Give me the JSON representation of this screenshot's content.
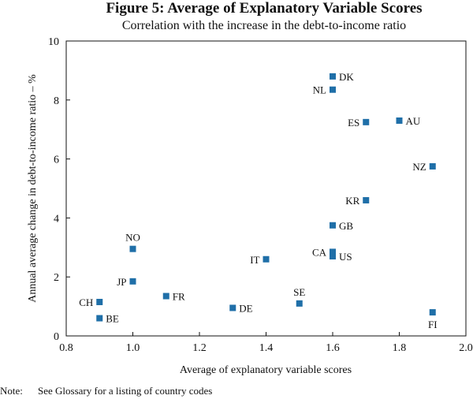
{
  "chart_data": {
    "type": "scatter",
    "title": "Figure 5: Average of Explanatory Variable Scores",
    "subtitle": "Correlation with the increase in the debt-to-income ratio",
    "xlabel": "Average of explanatory variable scores",
    "ylabel": "Annual average change in debt-to-income ratio – %",
    "xlim": [
      0.8,
      2.0
    ],
    "ylim": [
      0,
      10
    ],
    "x_ticks": [
      0.8,
      1.0,
      1.2,
      1.4,
      1.6,
      1.8,
      2.0
    ],
    "x_tick_labels": [
      "0.8",
      "1.0",
      "1.2",
      "1.4",
      "1.6",
      "1.8",
      "2.0"
    ],
    "y_ticks": [
      0,
      2,
      4,
      6,
      8,
      10
    ],
    "y_tick_labels": [
      "0",
      "2",
      "4",
      "6",
      "8",
      "10"
    ],
    "grid": false,
    "marker_color": "#1f6fa8",
    "points": [
      {
        "label": "DK",
        "x": 1.6,
        "y": 8.8,
        "pos": "right"
      },
      {
        "label": "NL",
        "x": 1.6,
        "y": 8.35,
        "pos": "left"
      },
      {
        "label": "ES",
        "x": 1.7,
        "y": 7.25,
        "pos": "left"
      },
      {
        "label": "AU",
        "x": 1.8,
        "y": 7.3,
        "pos": "right"
      },
      {
        "label": "NZ",
        "x": 1.9,
        "y": 5.75,
        "pos": "left"
      },
      {
        "label": "KR",
        "x": 1.7,
        "y": 4.6,
        "pos": "left"
      },
      {
        "label": "GB",
        "x": 1.6,
        "y": 3.75,
        "pos": "right"
      },
      {
        "label": "CA",
        "x": 1.6,
        "y": 2.85,
        "pos": "left"
      },
      {
        "label": "US",
        "x": 1.6,
        "y": 2.7,
        "pos": "right"
      },
      {
        "label": "IT",
        "x": 1.4,
        "y": 2.6,
        "pos": "left"
      },
      {
        "label": "NO",
        "x": 1.0,
        "y": 2.95,
        "pos": "above"
      },
      {
        "label": "JP",
        "x": 1.0,
        "y": 1.85,
        "pos": "left"
      },
      {
        "label": "FR",
        "x": 1.1,
        "y": 1.35,
        "pos": "right"
      },
      {
        "label": "SE",
        "x": 1.5,
        "y": 1.1,
        "pos": "above"
      },
      {
        "label": "DE",
        "x": 1.3,
        "y": 0.95,
        "pos": "right"
      },
      {
        "label": "CH",
        "x": 0.9,
        "y": 1.15,
        "pos": "left"
      },
      {
        "label": "BE",
        "x": 0.9,
        "y": 0.6,
        "pos": "right"
      },
      {
        "label": "FI",
        "x": 1.9,
        "y": 0.8,
        "pos": "below"
      }
    ]
  },
  "note": {
    "label": "Note:",
    "text": "See Glossary for a listing of country codes"
  }
}
